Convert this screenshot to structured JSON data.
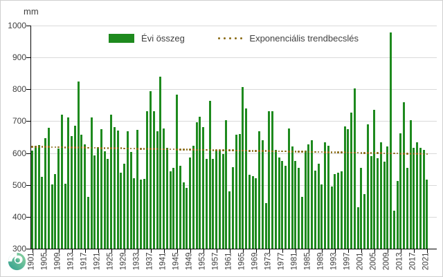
{
  "header": {
    "unit_label": "mm"
  },
  "legend": {
    "bars_label": "Évi összeg",
    "trend_label": "Exponenciális trendbecslés"
  },
  "colors": {
    "bar": "#1e8a1e",
    "trend": "#8a6a14",
    "grid": "#d9d9d9",
    "axis": "#000000",
    "text": "#404040",
    "logo_teal": "#2f9e8f",
    "logo_light": "#8fd4a0"
  },
  "logo": {
    "name": "met-service-swirl-logo"
  },
  "chart_data": {
    "type": "bar",
    "title": "",
    "ylabel": "mm",
    "xlabel": "",
    "ylim": [
      300,
      1000
    ],
    "ytick_step": 100,
    "y_tick_labels": [
      "1000",
      "900",
      "800",
      "700",
      "600",
      "500",
      "400",
      "300"
    ],
    "x_tick_labels": [
      "1901",
      "1905",
      "1909",
      "1913",
      "1917",
      "1921",
      "1925",
      "1929",
      "1933",
      "1937",
      "1941",
      "1945",
      "1949",
      "1953",
      "1957",
      "1961",
      "1965",
      "1969",
      "1973",
      "1977",
      "1981",
      "1985",
      "1989",
      "1993",
      "1997",
      "2001",
      "2005",
      "2009",
      "2013",
      "2017",
      "2021"
    ],
    "x_label_every_years": 4,
    "start_year": 1901,
    "end_year": 2021,
    "grid": true,
    "legend_position": "top-center",
    "series": [
      {
        "name": "Évi összeg",
        "values": [
          607,
          622,
          626,
          525,
          646,
          680,
          502,
          533,
          614,
          721,
          503,
          711,
          653,
          686,
          824,
          657,
          628,
          463,
          711,
          592,
          618,
          675,
          606,
          581,
          720,
          682,
          671,
          538,
          567,
          668,
          603,
          520,
          673,
          517,
          518,
          731,
          794,
          732,
          669,
          840,
          678,
          617,
          542,
          553,
          783,
          561,
          509,
          491,
          585,
          623,
          697,
          714,
          682,
          582,
          763,
          582,
          609,
          607,
          596,
          704,
          479,
          556,
          657,
          660,
          807,
          741,
          531,
          527,
          520,
          668,
          640,
          443,
          731,
          732,
          610,
          587,
          576,
          561,
          678,
          620,
          576,
          553,
          463,
          607,
          628,
          640,
          545,
          567,
          502,
          633,
          622,
          495,
          535,
          538,
          542,
          683,
          675,
          727,
          802,
          430,
          554,
          471,
          690,
          590,
          736,
          584,
          634,
          574,
          621,
          978,
          420,
          513,
          662,
          760,
          553,
          704,
          617,
          634,
          617,
          610,
          516
        ]
      }
    ],
    "trend": {
      "name": "Exponenciális trendbecslés",
      "type": "exponential",
      "start_value": 620,
      "end_value": 597
    }
  }
}
